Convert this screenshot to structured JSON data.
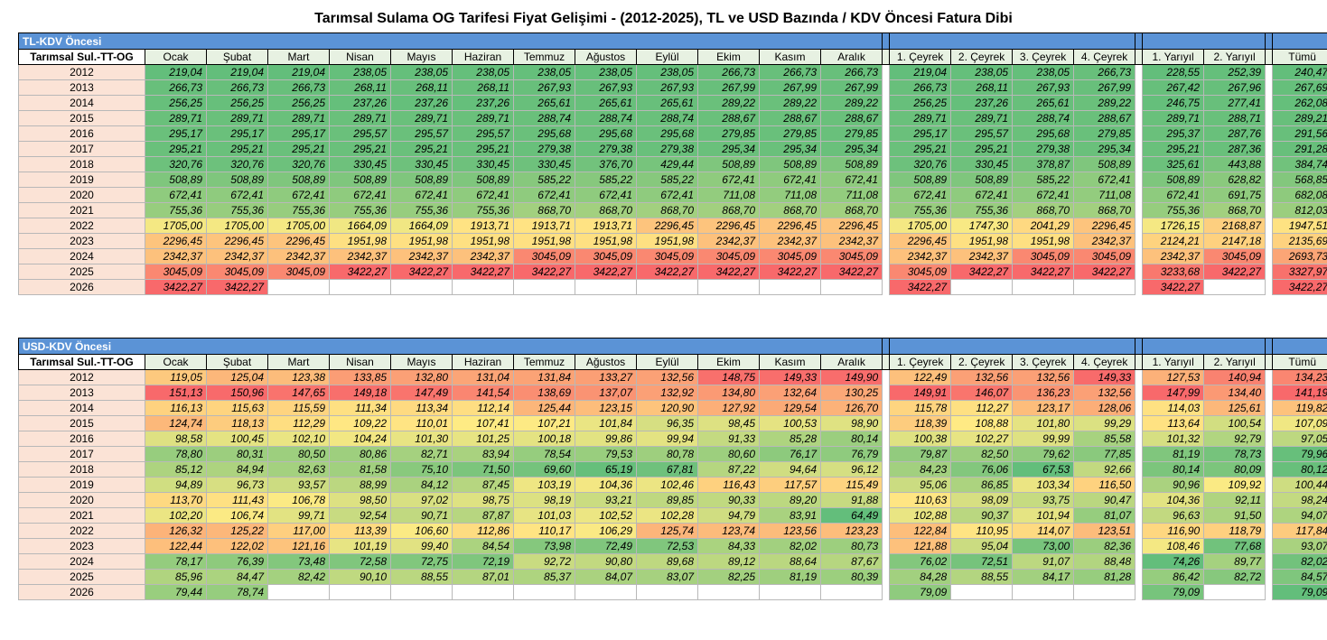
{
  "title": "Tarımsal Sulama OG Tarifesi Fiyat Gelişimi - (2012-2025), TL ve USD Bazında / KDV Öncesi Fatura Dibi",
  "headers": {
    "months": [
      "Ocak",
      "Şubat",
      "Mart",
      "Nisan",
      "Mayıs",
      "Haziran",
      "Temmuz",
      "Ağustos",
      "Eylül",
      "Ekim",
      "Kasım",
      "Aralık"
    ],
    "quarters": [
      "1. Çeyrek",
      "2. Çeyrek",
      "3. Çeyrek",
      "4. Çeyrek"
    ],
    "halves": [
      "1. Yarıyıl",
      "2. Yarıyıl"
    ],
    "total": "Tümü"
  },
  "colors": {
    "section_header": "#5b93d6",
    "column_header": "#e7f1e2",
    "year_cell": "#fbe3d6",
    "scale_low": "#63be7b",
    "scale_mid": "#ffeb84",
    "scale_high": "#f8696b"
  },
  "tables": [
    {
      "section_label": "TL-KDV Öncesi",
      "row_label": "Tarımsal Sul.-TT-OG",
      "rows": [
        {
          "year": "2012",
          "months": [
            "219,04",
            "219,04",
            "219,04",
            "238,05",
            "238,05",
            "238,05",
            "238,05",
            "238,05",
            "238,05",
            "266,73",
            "266,73",
            "266,73"
          ],
          "quarters": [
            "219,04",
            "238,05",
            "238,05",
            "266,73"
          ],
          "halves": [
            "228,55",
            "252,39"
          ],
          "total": "240,47"
        },
        {
          "year": "2013",
          "months": [
            "266,73",
            "266,73",
            "266,73",
            "268,11",
            "268,11",
            "268,11",
            "267,93",
            "267,93",
            "267,93",
            "267,99",
            "267,99",
            "267,99"
          ],
          "quarters": [
            "266,73",
            "268,11",
            "267,93",
            "267,99"
          ],
          "halves": [
            "267,42",
            "267,96"
          ],
          "total": "267,69"
        },
        {
          "year": "2014",
          "months": [
            "256,25",
            "256,25",
            "256,25",
            "237,26",
            "237,26",
            "237,26",
            "265,61",
            "265,61",
            "265,61",
            "289,22",
            "289,22",
            "289,22"
          ],
          "quarters": [
            "256,25",
            "237,26",
            "265,61",
            "289,22"
          ],
          "halves": [
            "246,75",
            "277,41"
          ],
          "total": "262,08"
        },
        {
          "year": "2015",
          "months": [
            "289,71",
            "289,71",
            "289,71",
            "289,71",
            "289,71",
            "289,71",
            "288,74",
            "288,74",
            "288,74",
            "288,67",
            "288,67",
            "288,67"
          ],
          "quarters": [
            "289,71",
            "289,71",
            "288,74",
            "288,67"
          ],
          "halves": [
            "289,71",
            "288,71"
          ],
          "total": "289,21"
        },
        {
          "year": "2016",
          "months": [
            "295,17",
            "295,17",
            "295,17",
            "295,57",
            "295,57",
            "295,57",
            "295,68",
            "295,68",
            "295,68",
            "279,85",
            "279,85",
            "279,85"
          ],
          "quarters": [
            "295,17",
            "295,57",
            "295,68",
            "279,85"
          ],
          "halves": [
            "295,37",
            "287,76"
          ],
          "total": "291,56"
        },
        {
          "year": "2017",
          "months": [
            "295,21",
            "295,21",
            "295,21",
            "295,21",
            "295,21",
            "295,21",
            "279,38",
            "279,38",
            "279,38",
            "295,34",
            "295,34",
            "295,34"
          ],
          "quarters": [
            "295,21",
            "295,21",
            "279,38",
            "295,34"
          ],
          "halves": [
            "295,21",
            "287,36"
          ],
          "total": "291,28"
        },
        {
          "year": "2018",
          "months": [
            "320,76",
            "320,76",
            "320,76",
            "330,45",
            "330,45",
            "330,45",
            "330,45",
            "376,70",
            "429,44",
            "508,89",
            "508,89",
            "508,89"
          ],
          "quarters": [
            "320,76",
            "330,45",
            "378,87",
            "508,89"
          ],
          "halves": [
            "325,61",
            "443,88"
          ],
          "total": "384,74"
        },
        {
          "year": "2019",
          "months": [
            "508,89",
            "508,89",
            "508,89",
            "508,89",
            "508,89",
            "508,89",
            "585,22",
            "585,22",
            "585,22",
            "672,41",
            "672,41",
            "672,41"
          ],
          "quarters": [
            "508,89",
            "508,89",
            "585,22",
            "672,41"
          ],
          "halves": [
            "508,89",
            "628,82"
          ],
          "total": "568,85"
        },
        {
          "year": "2020",
          "months": [
            "672,41",
            "672,41",
            "672,41",
            "672,41",
            "672,41",
            "672,41",
            "672,41",
            "672,41",
            "672,41",
            "711,08",
            "711,08",
            "711,08"
          ],
          "quarters": [
            "672,41",
            "672,41",
            "672,41",
            "711,08"
          ],
          "halves": [
            "672,41",
            "691,75"
          ],
          "total": "682,08"
        },
        {
          "year": "2021",
          "months": [
            "755,36",
            "755,36",
            "755,36",
            "755,36",
            "755,36",
            "755,36",
            "868,70",
            "868,70",
            "868,70",
            "868,70",
            "868,70",
            "868,70"
          ],
          "quarters": [
            "755,36",
            "755,36",
            "868,70",
            "868,70"
          ],
          "halves": [
            "755,36",
            "868,70"
          ],
          "total": "812,03"
        },
        {
          "year": "2022",
          "months": [
            "1705,00",
            "1705,00",
            "1705,00",
            "1664,09",
            "1664,09",
            "1913,71",
            "1913,71",
            "1913,71",
            "2296,45",
            "2296,45",
            "2296,45",
            "2296,45"
          ],
          "quarters": [
            "1705,00",
            "1747,30",
            "2041,29",
            "2296,45"
          ],
          "halves": [
            "1726,15",
            "2168,87"
          ],
          "total": "1947,51"
        },
        {
          "year": "2023",
          "months": [
            "2296,45",
            "2296,45",
            "2296,45",
            "1951,98",
            "1951,98",
            "1951,98",
            "1951,98",
            "1951,98",
            "1951,98",
            "2342,37",
            "2342,37",
            "2342,37"
          ],
          "quarters": [
            "2296,45",
            "1951,98",
            "1951,98",
            "2342,37"
          ],
          "halves": [
            "2124,21",
            "2147,18"
          ],
          "total": "2135,69"
        },
        {
          "year": "2024",
          "months": [
            "2342,37",
            "2342,37",
            "2342,37",
            "2342,37",
            "2342,37",
            "2342,37",
            "3045,09",
            "3045,09",
            "3045,09",
            "3045,09",
            "3045,09",
            "3045,09"
          ],
          "quarters": [
            "2342,37",
            "2342,37",
            "3045,09",
            "3045,09"
          ],
          "halves": [
            "2342,37",
            "3045,09"
          ],
          "total": "2693,73"
        },
        {
          "year": "2025",
          "months": [
            "3045,09",
            "3045,09",
            "3045,09",
            "3422,27",
            "3422,27",
            "3422,27",
            "3422,27",
            "3422,27",
            "3422,27",
            "3422,27",
            "3422,27",
            "3422,27"
          ],
          "quarters": [
            "3045,09",
            "3422,27",
            "3422,27",
            "3422,27"
          ],
          "halves": [
            "3233,68",
            "3422,27"
          ],
          "total": "3327,97"
        },
        {
          "year": "2026",
          "months": [
            "3422,27",
            "3422,27",
            "",
            "",
            "",
            "",
            "",
            "",
            "",
            "",
            "",
            ""
          ],
          "quarters": [
            "3422,27",
            "",
            "",
            ""
          ],
          "halves": [
            "3422,27",
            ""
          ],
          "total": "3422,27"
        }
      ]
    },
    {
      "section_label": "USD-KDV Öncesi",
      "row_label": "Tarımsal Sul.-TT-OG",
      "rows": [
        {
          "year": "2012",
          "months": [
            "119,05",
            "125,04",
            "123,38",
            "133,85",
            "132,80",
            "131,04",
            "131,84",
            "133,27",
            "132,56",
            "148,75",
            "149,33",
            "149,90"
          ],
          "quarters": [
            "122,49",
            "132,56",
            "132,56",
            "149,33"
          ],
          "halves": [
            "127,53",
            "140,94"
          ],
          "total": "134,23"
        },
        {
          "year": "2013",
          "months": [
            "151,13",
            "150,96",
            "147,65",
            "149,18",
            "147,49",
            "141,54",
            "138,69",
            "137,07",
            "132,92",
            "134,80",
            "132,64",
            "130,25"
          ],
          "quarters": [
            "149,91",
            "146,07",
            "136,23",
            "132,56"
          ],
          "halves": [
            "147,99",
            "134,40"
          ],
          "total": "141,19"
        },
        {
          "year": "2014",
          "months": [
            "116,13",
            "115,63",
            "115,59",
            "111,34",
            "113,34",
            "112,14",
            "125,44",
            "123,15",
            "120,90",
            "127,92",
            "129,54",
            "126,70"
          ],
          "quarters": [
            "115,78",
            "112,27",
            "123,17",
            "128,06"
          ],
          "halves": [
            "114,03",
            "125,61"
          ],
          "total": "119,82"
        },
        {
          "year": "2015",
          "months": [
            "124,74",
            "118,13",
            "112,29",
            "109,22",
            "110,01",
            "107,41",
            "107,21",
            "101,84",
            "96,35",
            "98,45",
            "100,53",
            "98,90"
          ],
          "quarters": [
            "118,39",
            "108,88",
            "101,80",
            "99,29"
          ],
          "halves": [
            "113,64",
            "100,54"
          ],
          "total": "107,09"
        },
        {
          "year": "2016",
          "months": [
            "98,58",
            "100,45",
            "102,10",
            "104,24",
            "101,30",
            "101,25",
            "100,18",
            "99,86",
            "99,94",
            "91,33",
            "85,28",
            "80,14"
          ],
          "quarters": [
            "100,38",
            "102,27",
            "99,99",
            "85,58"
          ],
          "halves": [
            "101,32",
            "92,79"
          ],
          "total": "97,05"
        },
        {
          "year": "2017",
          "months": [
            "78,80",
            "80,31",
            "80,50",
            "80,86",
            "82,71",
            "83,94",
            "78,54",
            "79,53",
            "80,78",
            "80,60",
            "76,17",
            "76,79"
          ],
          "quarters": [
            "79,87",
            "82,50",
            "79,62",
            "77,85"
          ],
          "halves": [
            "81,19",
            "78,73"
          ],
          "total": "79,96"
        },
        {
          "year": "2018",
          "months": [
            "85,12",
            "84,94",
            "82,63",
            "81,58",
            "75,10",
            "71,50",
            "69,60",
            "65,19",
            "67,81",
            "87,22",
            "94,64",
            "96,12"
          ],
          "quarters": [
            "84,23",
            "76,06",
            "67,53",
            "92,66"
          ],
          "halves": [
            "80,14",
            "80,09"
          ],
          "total": "80,12"
        },
        {
          "year": "2019",
          "months": [
            "94,89",
            "96,73",
            "93,57",
            "88,99",
            "84,12",
            "87,45",
            "103,19",
            "104,36",
            "102,46",
            "116,43",
            "117,57",
            "115,49"
          ],
          "quarters": [
            "95,06",
            "86,85",
            "103,34",
            "116,50"
          ],
          "halves": [
            "90,96",
            "109,92"
          ],
          "total": "100,44"
        },
        {
          "year": "2020",
          "months": [
            "113,70",
            "111,43",
            "106,78",
            "98,50",
            "97,02",
            "98,75",
            "98,19",
            "93,21",
            "89,85",
            "90,33",
            "89,20",
            "91,88"
          ],
          "quarters": [
            "110,63",
            "98,09",
            "93,75",
            "90,47"
          ],
          "halves": [
            "104,36",
            "92,11"
          ],
          "total": "98,24"
        },
        {
          "year": "2021",
          "months": [
            "102,20",
            "106,74",
            "99,71",
            "92,54",
            "90,71",
            "87,87",
            "101,03",
            "102,52",
            "102,28",
            "94,79",
            "83,91",
            "64,49"
          ],
          "quarters": [
            "102,88",
            "90,37",
            "101,94",
            "81,07"
          ],
          "halves": [
            "96,63",
            "91,50"
          ],
          "total": "94,07"
        },
        {
          "year": "2022",
          "months": [
            "126,32",
            "125,22",
            "117,00",
            "113,39",
            "106,60",
            "112,86",
            "110,17",
            "106,29",
            "125,74",
            "123,74",
            "123,56",
            "123,23"
          ],
          "quarters": [
            "122,84",
            "110,95",
            "114,07",
            "123,51"
          ],
          "halves": [
            "116,90",
            "118,79"
          ],
          "total": "117,84"
        },
        {
          "year": "2023",
          "months": [
            "122,44",
            "122,02",
            "121,16",
            "101,19",
            "99,40",
            "84,54",
            "73,98",
            "72,49",
            "72,53",
            "84,33",
            "82,02",
            "80,73"
          ],
          "quarters": [
            "121,88",
            "95,04",
            "73,00",
            "82,36"
          ],
          "halves": [
            "108,46",
            "77,68"
          ],
          "total": "93,07"
        },
        {
          "year": "2024",
          "months": [
            "78,17",
            "76,39",
            "73,48",
            "72,58",
            "72,75",
            "72,19",
            "92,72",
            "90,80",
            "89,68",
            "89,12",
            "88,64",
            "87,67"
          ],
          "quarters": [
            "76,02",
            "72,51",
            "91,07",
            "88,48"
          ],
          "halves": [
            "74,26",
            "89,77"
          ],
          "total": "82,02"
        },
        {
          "year": "2025",
          "months": [
            "85,96",
            "84,47",
            "82,42",
            "90,10",
            "88,55",
            "87,01",
            "85,37",
            "84,07",
            "83,07",
            "82,25",
            "81,19",
            "80,39"
          ],
          "quarters": [
            "84,28",
            "88,55",
            "84,17",
            "81,28"
          ],
          "halves": [
            "86,42",
            "82,72"
          ],
          "total": "84,57"
        },
        {
          "year": "2026",
          "months": [
            "79,44",
            "78,74",
            "",
            "",
            "",
            "",
            "",
            "",
            "",
            "",
            "",
            ""
          ],
          "quarters": [
            "79,09",
            "",
            "",
            ""
          ],
          "halves": [
            "79,09",
            ""
          ],
          "total": "79,09"
        }
      ]
    }
  ]
}
